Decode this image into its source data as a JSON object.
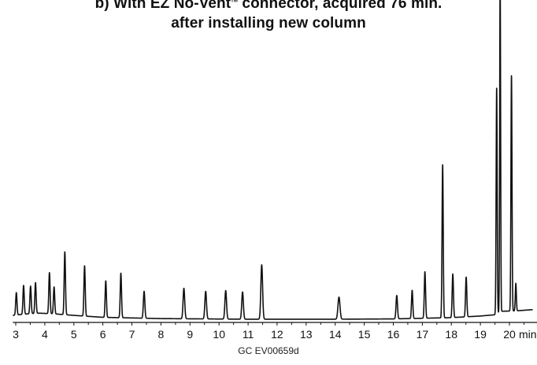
{
  "chart_data": {
    "type": "line",
    "title_line1": "b) With EZ No-Vent",
    "title_tm": "TM",
    "title_line1_rest": " connector, acquired 76 min.",
    "title_line2": "after installing new column",
    "xlabel": "min",
    "xlim": [
      2.9,
      20.8
    ],
    "ylim": [
      0,
      100
    ],
    "ticks": [
      3,
      4,
      5,
      6,
      7,
      8,
      9,
      10,
      11,
      12,
      13,
      14,
      15,
      16,
      17,
      18,
      19,
      20
    ],
    "baseline": [
      [
        2.9,
        2.2
      ],
      [
        3.3,
        2.6
      ],
      [
        3.8,
        2.9
      ],
      [
        4.3,
        2.7
      ],
      [
        5.0,
        2.2
      ],
      [
        6.0,
        1.6
      ],
      [
        8.0,
        1.2
      ],
      [
        11.0,
        1.0
      ],
      [
        14.0,
        1.0
      ],
      [
        16.0,
        1.1
      ],
      [
        17.0,
        1.3
      ],
      [
        18.0,
        1.5
      ],
      [
        19.0,
        2.0
      ],
      [
        19.5,
        2.4
      ],
      [
        19.75,
        3.5
      ],
      [
        20.2,
        3.6
      ],
      [
        20.8,
        4.0
      ]
    ],
    "peaks": [
      {
        "rt": 3.02,
        "height": 7.0,
        "width": 0.022
      },
      {
        "rt": 3.27,
        "height": 9.0,
        "width": 0.022
      },
      {
        "rt": 3.51,
        "height": 8.6,
        "width": 0.022
      },
      {
        "rt": 3.68,
        "height": 9.6,
        "width": 0.022
      },
      {
        "rt": 4.16,
        "height": 12.8,
        "width": 0.022
      },
      {
        "rt": 4.32,
        "height": 8.4,
        "width": 0.022
      },
      {
        "rt": 4.69,
        "height": 19.6,
        "width": 0.022
      },
      {
        "rt": 5.37,
        "height": 15.7,
        "width": 0.022
      },
      {
        "rt": 6.1,
        "height": 11.4,
        "width": 0.022
      },
      {
        "rt": 6.62,
        "height": 13.9,
        "width": 0.022
      },
      {
        "rt": 7.42,
        "height": 8.4,
        "width": 0.025
      },
      {
        "rt": 8.79,
        "height": 9.5,
        "width": 0.028
      },
      {
        "rt": 9.54,
        "height": 8.6,
        "width": 0.028
      },
      {
        "rt": 10.23,
        "height": 8.9,
        "width": 0.028
      },
      {
        "rt": 10.81,
        "height": 8.5,
        "width": 0.028
      },
      {
        "rt": 11.47,
        "height": 17.0,
        "width": 0.03
      },
      {
        "rt": 14.13,
        "height": 6.9,
        "width": 0.035
      },
      {
        "rt": 16.12,
        "height": 7.3,
        "width": 0.025
      },
      {
        "rt": 16.65,
        "height": 8.8,
        "width": 0.022
      },
      {
        "rt": 17.09,
        "height": 14.5,
        "width": 0.022
      },
      {
        "rt": 17.7,
        "height": 47.8,
        "width": 0.02
      },
      {
        "rt": 18.05,
        "height": 13.6,
        "width": 0.022
      },
      {
        "rt": 18.51,
        "height": 12.4,
        "width": 0.022
      },
      {
        "rt": 19.56,
        "height": 70.5,
        "width": 0.018
      },
      {
        "rt": 19.68,
        "height": 104.0,
        "width": 0.016
      },
      {
        "rt": 20.07,
        "height": 73.5,
        "width": 0.018
      },
      {
        "rt": 20.22,
        "height": 8.6,
        "width": 0.018
      }
    ],
    "line_color": "#111111"
  },
  "footer_text": "GC  EV00659d"
}
